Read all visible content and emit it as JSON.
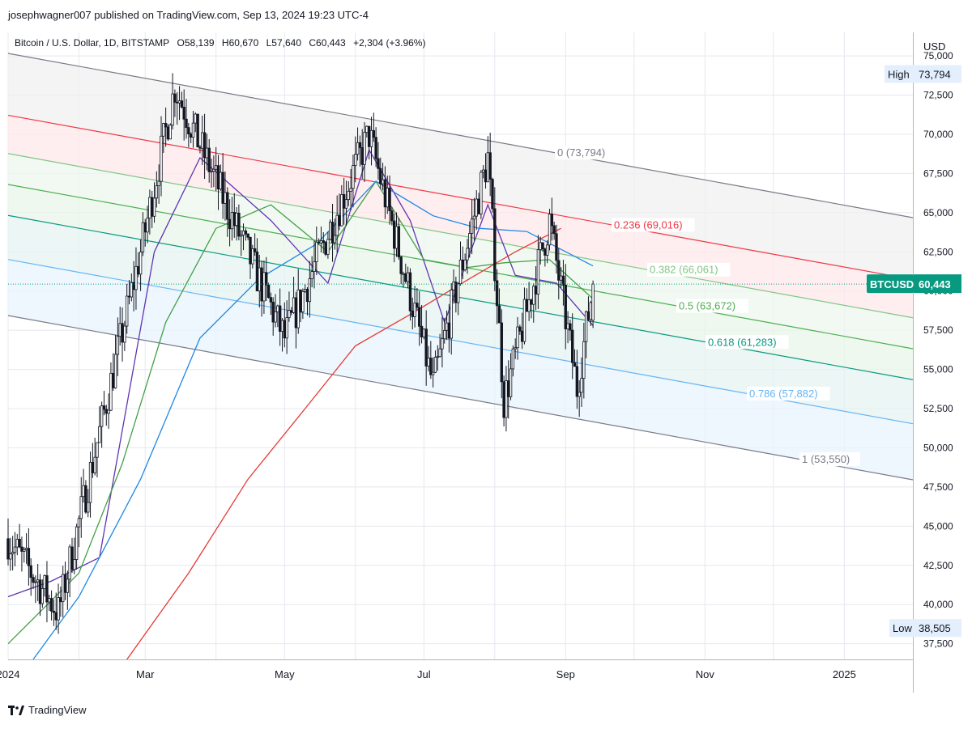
{
  "header": {
    "publish_line": "josephwagner007 published on TradingView.com, Sep 13, 2024 19:23 UTC-4"
  },
  "symbol": {
    "name": "Bitcoin / U.S. Dollar, 1D, BITSTAMP",
    "open": "O58,139",
    "high": "H60,670",
    "low": "L57,640",
    "close": "C60,443",
    "change": "+2,304 (+3.96%)"
  },
  "price_axis": {
    "currency": "USD",
    "ticks": [
      "75,000",
      "72,500",
      "70,000",
      "67,500",
      "65,000",
      "62,500",
      "60,000",
      "57,500",
      "55,000",
      "52,500",
      "50,000",
      "47,500",
      "45,000",
      "42,500",
      "40,000",
      "37,500"
    ],
    "high_tag": {
      "label": "High",
      "value": "73,794"
    },
    "low_tag": {
      "label": "Low",
      "value": "38,505"
    },
    "last_tag": {
      "label": "BTCUSD",
      "value": "60,443",
      "color": "#089981"
    }
  },
  "time_axis": {
    "labels": [
      "2024",
      "Mar",
      "May",
      "Jul",
      "Sep",
      "Nov",
      "2025"
    ]
  },
  "fib_levels": [
    {
      "label": "0 (73,794)",
      "color": "#787b86"
    },
    {
      "label": "0.236 (69,016)",
      "color": "#f23645"
    },
    {
      "label": "0.382 (66,061)",
      "color": "#81c784"
    },
    {
      "label": "0.5 (63,672)",
      "color": "#4caf50"
    },
    {
      "label": "0.618 (61,283)",
      "color": "#089981"
    },
    {
      "label": "0.786 (57,882)",
      "color": "#64b5f6"
    },
    {
      "label": "1 (53,550)",
      "color": "#787b86"
    }
  ],
  "footer": {
    "brand": "TradingView"
  },
  "chart_data": {
    "type": "candlestick",
    "title": "Bitcoin / U.S. Dollar, 1D, BITSTAMP",
    "ylabel": "USD",
    "ylim": [
      36500,
      76500
    ],
    "grid": true,
    "x_range": [
      "2024-01-01",
      "2025-01-31"
    ],
    "last_close": 60443,
    "key_points": [
      {
        "date": "2024-01-01",
        "close": 44200
      },
      {
        "date": "2024-01-23",
        "close": 39500
      },
      {
        "date": "2024-02-28",
        "close": 62500
      },
      {
        "date": "2024-03-14",
        "close": 73000
      },
      {
        "date": "2024-05-01",
        "close": 57000
      },
      {
        "date": "2024-06-07",
        "close": 70000
      },
      {
        "date": "2024-07-05",
        "close": 54000
      },
      {
        "date": "2024-07-29",
        "close": 68500
      },
      {
        "date": "2024-08-05",
        "close": 53000
      },
      {
        "date": "2024-08-25",
        "close": 64500
      },
      {
        "date": "2024-09-06",
        "close": 53800
      },
      {
        "date": "2024-09-13",
        "close": 60443
      }
    ],
    "moving_averages": [
      {
        "color": "#5e35b1",
        "points": [
          [
            "2024-01-01",
            40500
          ],
          [
            "2024-01-20",
            41500
          ],
          [
            "2024-02-10",
            43000
          ],
          [
            "2024-03-05",
            62500
          ],
          [
            "2024-03-25",
            68500
          ],
          [
            "2024-04-25",
            64500
          ],
          [
            "2024-05-20",
            60500
          ],
          [
            "2024-06-07",
            69000
          ],
          [
            "2024-06-25",
            64500
          ],
          [
            "2024-07-10",
            58000
          ],
          [
            "2024-07-29",
            65500
          ],
          [
            "2024-08-10",
            61000
          ],
          [
            "2024-08-28",
            60500
          ],
          [
            "2024-09-13",
            57800
          ]
        ]
      },
      {
        "color": "#43a047",
        "points": [
          [
            "2024-01-01",
            37500
          ],
          [
            "2024-02-01",
            42000
          ],
          [
            "2024-02-20",
            49000
          ],
          [
            "2024-03-10",
            58000
          ],
          [
            "2024-04-01",
            64000
          ],
          [
            "2024-04-25",
            65500
          ],
          [
            "2024-05-20",
            62500
          ],
          [
            "2024-06-10",
            67000
          ],
          [
            "2024-07-01",
            62000
          ],
          [
            "2024-07-20",
            61500
          ],
          [
            "2024-08-05",
            61800
          ],
          [
            "2024-08-25",
            62000
          ],
          [
            "2024-09-13",
            59500
          ]
        ]
      },
      {
        "color": "#1e88e5",
        "points": [
          [
            "2024-01-12",
            36500
          ],
          [
            "2024-02-01",
            40500
          ],
          [
            "2024-02-28",
            48000
          ],
          [
            "2024-03-25",
            57000
          ],
          [
            "2024-04-20",
            60800
          ],
          [
            "2024-05-15",
            63000
          ],
          [
            "2024-06-10",
            67000
          ],
          [
            "2024-07-05",
            64800
          ],
          [
            "2024-07-25",
            64000
          ],
          [
            "2024-08-15",
            63800
          ],
          [
            "2024-09-13",
            61600
          ]
        ]
      },
      {
        "color": "#e53935",
        "points": [
          [
            "2024-02-22",
            36500
          ],
          [
            "2024-03-20",
            42000
          ],
          [
            "2024-04-15",
            48000
          ],
          [
            "2024-05-10",
            52500
          ],
          [
            "2024-06-01",
            56500
          ],
          [
            "2024-06-25",
            58500
          ],
          [
            "2024-07-20",
            60700
          ],
          [
            "2024-08-10",
            62500
          ],
          [
            "2024-08-30",
            64000
          ]
        ]
      }
    ]
  }
}
